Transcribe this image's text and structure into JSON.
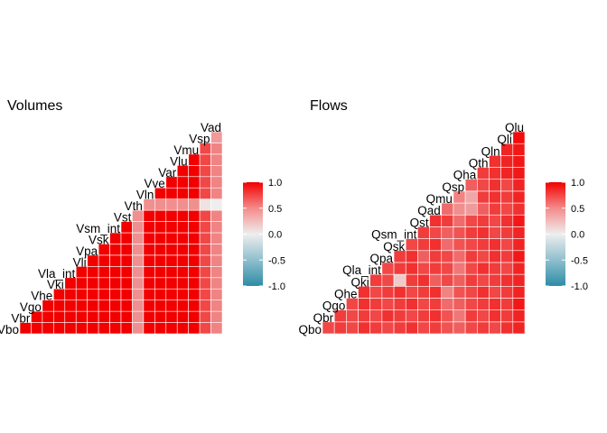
{
  "chart_data": [
    {
      "type": "heatmap",
      "title": "Volumes",
      "xlabel": "",
      "ylabel": "",
      "variables": [
        "Vbo",
        "Vbr",
        "Vgo",
        "Vhe",
        "Vki",
        "Vla_int",
        "Vli",
        "Vpa",
        "Vsk",
        "Vsm_int",
        "Vst",
        "Vth",
        "Vln",
        "Vve",
        "Var",
        "Vlu",
        "Vmu",
        "Vsp",
        "Vad"
      ],
      "lower_triangle": true,
      "constant_value": 1.0,
      "exceptions": [
        {
          "variable": "Vth",
          "with": "all",
          "value": 0.4
        },
        {
          "variable": "Vad",
          "with": "all",
          "value": 0.45
        },
        {
          "variable": "Vad",
          "with": "Vth",
          "value": 0.0
        },
        {
          "variable": "Vsp",
          "with": "all",
          "value": 0.7
        },
        {
          "variable": "Vsp",
          "with": "Vth",
          "value": 0.05
        },
        {
          "variable": "Vsp",
          "with": "Vad",
          "value": 0.35
        }
      ],
      "legend": {
        "range": [
          -1.0,
          1.0
        ],
        "ticks": [
          1.0,
          0.5,
          0.0,
          -0.5,
          -1.0
        ],
        "tick_labels": [
          "1.0",
          "0.5",
          "0.0",
          "-0.5",
          "-1.0"
        ],
        "position": "right"
      },
      "colors": {
        "low": "#2d8ca6",
        "mid": "#eeeeee",
        "high": "#f20000"
      }
    },
    {
      "type": "heatmap",
      "title": "Flows",
      "xlabel": "",
      "ylabel": "",
      "variables": [
        "Qbo",
        "Qbr",
        "Qgo",
        "Qhe",
        "Qki",
        "Qla_int",
        "Qpa",
        "Qsk",
        "Qsm_int",
        "Qst",
        "Qad",
        "Qmu",
        "Qsp",
        "Qha",
        "Qth",
        "Qln",
        "Qli",
        "Qlu"
      ],
      "lower_triangle": true,
      "values_matrix": [
        [
          0.7,
          0.75,
          0.7,
          0.8,
          0.75,
          0.7,
          0.75,
          0.8,
          0.7,
          0.75,
          0.65,
          0.6,
          0.7,
          0.75,
          0.7,
          0.8,
          0.85
        ],
        [
          0.75,
          0.7,
          0.75,
          0.7,
          0.8,
          0.75,
          0.7,
          0.75,
          0.8,
          0.65,
          0.5,
          0.75,
          0.7,
          0.8,
          0.75,
          0.85
        ],
        [
          0.7,
          0.8,
          0.75,
          0.7,
          0.75,
          0.8,
          0.7,
          0.75,
          0.55,
          0.6,
          0.7,
          0.75,
          0.8,
          0.75,
          0.9
        ],
        [
          0.8,
          0.7,
          0.75,
          0.8,
          0.7,
          0.75,
          0.8,
          0.45,
          0.65,
          0.7,
          0.8,
          0.7,
          0.75,
          0.85
        ],
        [
          0.75,
          0.7,
          0.15,
          0.75,
          0.8,
          0.6,
          0.7,
          0.6,
          0.75,
          0.7,
          0.75,
          0.8,
          0.85
        ],
        [
          0.7,
          0.75,
          0.8,
          0.7,
          0.75,
          0.7,
          0.5,
          0.7,
          0.8,
          0.75,
          0.7,
          0.85
        ],
        [
          0.75,
          0.8,
          0.6,
          0.75,
          0.7,
          0.55,
          0.75,
          0.7,
          0.8,
          0.75,
          0.9
        ],
        [
          0.7,
          0.75,
          0.8,
          0.55,
          0.65,
          0.7,
          0.75,
          0.8,
          0.7,
          0.85
        ],
        [
          0.75,
          0.7,
          0.6,
          0.65,
          0.75,
          0.8,
          0.7,
          0.75,
          0.85
        ],
        [
          0.8,
          0.75,
          0.55,
          0.7,
          0.75,
          0.7,
          0.8,
          0.9
        ],
        [
          0.55,
          0.4,
          0.35,
          0.6,
          0.75,
          0.7,
          0.8
        ],
        [
          0.45,
          0.3,
          0.75,
          0.8,
          0.75,
          0.85
        ],
        [
          0.6,
          0.7,
          0.8,
          0.7,
          0.85
        ],
        [
          0.75,
          0.8,
          0.85,
          0.9
        ],
        [
          0.8,
          0.85,
          0.9
        ],
        [
          0.85,
          0.9
        ],
        [
          0.95
        ]
      ],
      "legend": {
        "range": [
          -1.0,
          1.0
        ],
        "ticks": [
          1.0,
          0.5,
          0.0,
          -0.5,
          -1.0
        ],
        "tick_labels": [
          "1.0",
          "0.5",
          "0.0",
          "-0.5",
          "-1.0"
        ],
        "position": "right"
      },
      "colors": {
        "low": "#2d8ca6",
        "mid": "#eeeeee",
        "high": "#f20000"
      }
    }
  ]
}
